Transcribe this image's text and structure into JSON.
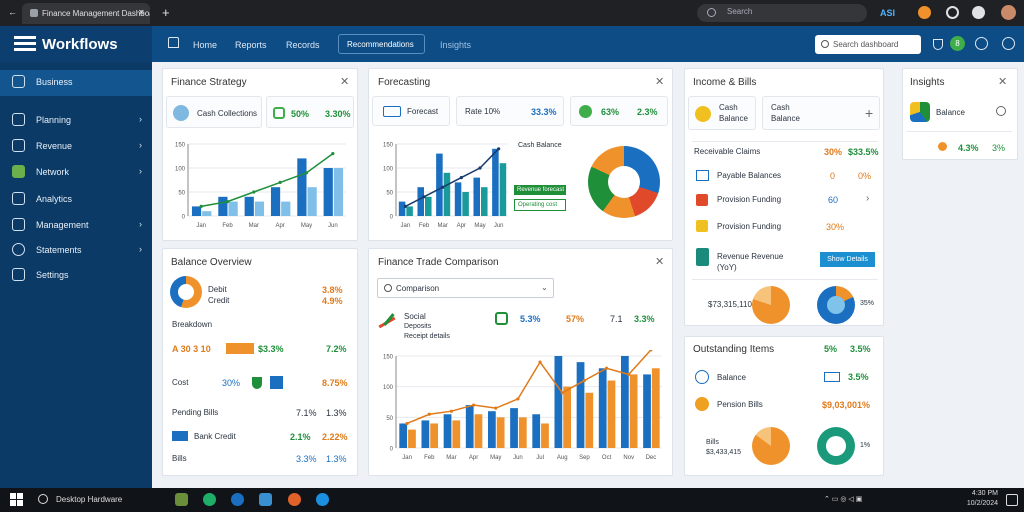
{
  "browser": {
    "tab_title": "Finance Management Dashboard",
    "back": "←",
    "close_tab": "✕",
    "new_tab": "+",
    "search_placeholder": "Search",
    "nav_right_text": "ASI"
  },
  "header": {
    "logo": "Workflows",
    "links": [
      "Home",
      "Reports",
      "Records"
    ],
    "active_link": "Recommendations",
    "link_after": "Insights",
    "search_placeholder": "Search dashboard",
    "badge": "8"
  },
  "sidebar": {
    "items": [
      {
        "label": "Business",
        "chevron": ""
      },
      {
        "label": "Planning",
        "chevron": "›"
      },
      {
        "label": "Revenue",
        "chevron": "›"
      },
      {
        "label": "Network",
        "chevron": "›"
      },
      {
        "label": "Analytics",
        "chevron": ""
      },
      {
        "label": "Management",
        "chevron": "›"
      },
      {
        "label": "Statements",
        "chevron": "›"
      },
      {
        "label": "Settings",
        "chevron": ""
      }
    ]
  },
  "card1": {
    "title": "Finance Strategy",
    "pill1": "Cash Collections",
    "pill2_a": "50%",
    "pill2_b": "3.30%",
    "y_ticks": [
      "150",
      "100",
      "50",
      "0"
    ],
    "x_ticks": [
      "Jan",
      "Feb",
      "Mar",
      "Apr",
      "May",
      "Jun"
    ]
  },
  "card2": {
    "title": "Forecasting",
    "pill1": "Forecast",
    "pill2": "Rate  10%",
    "pill2_b": "33.3%",
    "pill3_a": "63%",
    "pill3_b": "2.3%",
    "legend_title": "Cash Balance",
    "legend_a": "Revenue forecast",
    "legend_b": "Operating cost",
    "y_ticks": [
      "150",
      "100",
      "50",
      "0"
    ],
    "x_ticks": [
      "Jan",
      "Feb",
      "Mar",
      "Apr",
      "May",
      "Jun"
    ]
  },
  "card3": {
    "title": "Income & Bills",
    "item1_a": "Cash",
    "item1_b": "Balance",
    "rows": [
      {
        "label": "Receivable Claims",
        "a": "30%",
        "b": "$33.5%"
      },
      {
        "label": "Payable Balances",
        "a": "0",
        "b": "0%"
      },
      {
        "label": "Provision Funding",
        "a": "60",
        "b": "›"
      },
      {
        "label": "Revenue Revenue (YoY)",
        "a": "",
        "b": "Show Details"
      }
    ],
    "donut_label": "$73,315,110",
    "donut2_label": "35%"
  },
  "card4": {
    "title": "Insights",
    "subtitle": "Balance",
    "val_a": "4.3%",
    "val_b": "3%"
  },
  "card5": {
    "title": "Balance Overview",
    "donut_a": "Debit",
    "donut_b": "Credit",
    "val_a": "3.8%",
    "val_b": "4.9%",
    "section": "Breakdown",
    "rows": [
      {
        "label": "A 30 3 10",
        "a": "$3.3%",
        "b": "7.2%"
      },
      {
        "label": "Cost",
        "a": "30%",
        "b": "8.75%"
      },
      {
        "label": "Pending Bills",
        "a": "7.1%",
        "b": "1.3%"
      },
      {
        "label": "Bank Credit",
        "a": "2.1%",
        "b": "2.22%"
      },
      {
        "label": "Bills",
        "a": "3.3%",
        "b": "1.3%"
      }
    ]
  },
  "card6": {
    "title": "Finance Trade Comparison",
    "select": "Comparison",
    "legend_title": "Social",
    "legend_a": "Deposits",
    "legend_b": "Receipt details",
    "metric_a": "5.3%",
    "metric_b": "57%",
    "metric_c": "7.1",
    "metric_d": "3.3%",
    "y_ticks": [
      "150",
      "100",
      "50",
      "0"
    ],
    "x_ticks": [
      "Jan",
      "Feb",
      "Mar",
      "Apr",
      "May",
      "Jun",
      "Jul",
      "Aug",
      "Sep",
      "Oct",
      "Nov",
      "Dec"
    ]
  },
  "card7": {
    "title": "Outstanding Items",
    "val_a": "5%",
    "val_b": "3.5%",
    "rows": [
      {
        "label": "Balance",
        "a": "",
        "b": "3.5%"
      },
      {
        "label": "Pension Bills",
        "a": "",
        "b": "$9,03,001%"
      }
    ],
    "donut_label": "Bills $3,433,415",
    "donut2_label": "1%"
  },
  "taskbar": {
    "search": "Desktop Hardware",
    "clock": "4:30 PM",
    "date": "10/2/2024"
  },
  "colors": {
    "primary_blue": "#1b6fc1",
    "light_blue": "#6fb4e6",
    "dark_blue": "#0e4c85",
    "green": "#1f8f3a",
    "orange": "#f0922b",
    "teal": "#1a9a9a"
  },
  "chart_data": [
    {
      "type": "bar",
      "categories": [
        "Jan",
        "Feb",
        "Mar",
        "Apr",
        "May",
        "Jun"
      ],
      "series": [
        {
          "values": [
            20,
            40,
            40,
            60,
            120,
            100
          ]
        },
        {
          "values": [
            10,
            30,
            30,
            30,
            60,
            100
          ]
        }
      ],
      "line": [
        20,
        30,
        50,
        70,
        90,
        130
      ],
      "ylim": [
        0,
        150
      ]
    },
    {
      "type": "bar",
      "categories": [
        "Jan",
        "Feb",
        "Mar",
        "Apr",
        "May",
        "Jun"
      ],
      "series": [
        {
          "values": [
            30,
            60,
            130,
            70,
            80,
            140
          ]
        },
        {
          "values": [
            20,
            40,
            90,
            50,
            60,
            110
          ]
        }
      ],
      "line": [
        20,
        40,
        60,
        80,
        100,
        140
      ],
      "ylim": [
        0,
        150
      ]
    },
    {
      "type": "bar",
      "categories": [
        "Jan",
        "Feb",
        "Mar",
        "Apr",
        "May",
        "Jun",
        "Jul",
        "Aug",
        "Sep",
        "Oct",
        "Nov",
        "Dec"
      ],
      "series": [
        {
          "values": [
            40,
            45,
            55,
            70,
            60,
            65,
            55,
            150,
            140,
            130,
            150,
            120
          ]
        },
        {
          "values": [
            30,
            40,
            45,
            55,
            50,
            50,
            40,
            100,
            90,
            110,
            120,
            130
          ]
        }
      ],
      "line": [
        40,
        55,
        60,
        70,
        65,
        80,
        140,
        90,
        110,
        130,
        120,
        160
      ],
      "ylim": [
        0,
        150
      ]
    }
  ]
}
